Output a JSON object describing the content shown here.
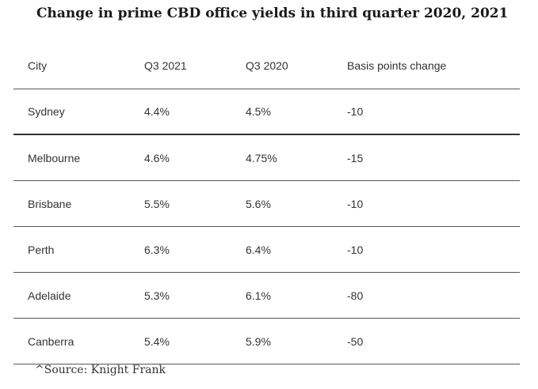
{
  "title": "Change in prime CBD office yields in third quarter 2020, 2021",
  "table": {
    "headers": [
      "City",
      "Q3 2021",
      "Q3 2020",
      "Basis points change"
    ],
    "rows": [
      [
        "Sydney",
        "4.4%",
        "4.5%",
        "-10"
      ],
      [
        "Melbourne",
        "4.6%",
        "4.75%",
        "-15"
      ],
      [
        "Brisbane",
        "5.5%",
        "5.6%",
        "-10"
      ],
      [
        "Perth",
        "6.3%",
        "6.4%",
        "-10"
      ],
      [
        "Adelaide",
        "5.3%",
        "6.1%",
        "-80"
      ],
      [
        "Canberra",
        "5.4%",
        "5.9%",
        "-50"
      ]
    ]
  },
  "source": "^Source: Knight Frank"
}
